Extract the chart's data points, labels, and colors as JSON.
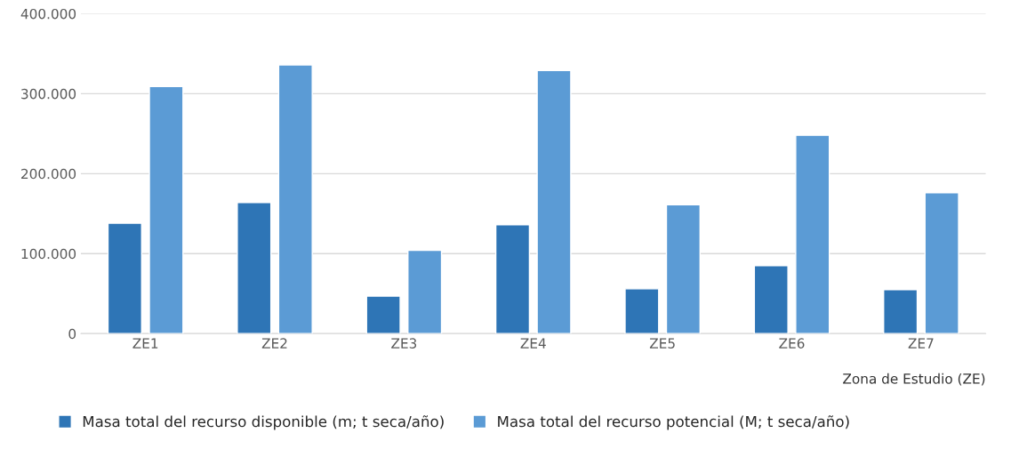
{
  "chart_data": {
    "type": "bar",
    "xlabel": "Zona de Estudio (ZE)",
    "categories": [
      "ZE1",
      "ZE2",
      "ZE3",
      "ZE4",
      "ZE5",
      "ZE6",
      "ZE7"
    ],
    "series": [
      {
        "name": "Masa total del recurso disponible (m; t seca/año)",
        "color": "#2e75b6",
        "values": [
          138000,
          164000,
          47000,
          136000,
          56000,
          85000,
          55000
        ]
      },
      {
        "name": "Masa total del recurso potencial (M; t seca/año)",
        "color": "#5b9bd5",
        "values": [
          309000,
          336000,
          104000,
          329000,
          161000,
          248000,
          176000
        ]
      }
    ],
    "ylim": [
      0,
      400000
    ],
    "yticks": [
      0,
      {
        "value": 100000,
        "label": "100.000"
      },
      {
        "value": 200000,
        "label": "200.000"
      },
      {
        "value": 300000,
        "label": "300.000"
      },
      {
        "value": 400000,
        "label": "400.000"
      }
    ],
    "grid": "y",
    "legend": "bottom"
  }
}
